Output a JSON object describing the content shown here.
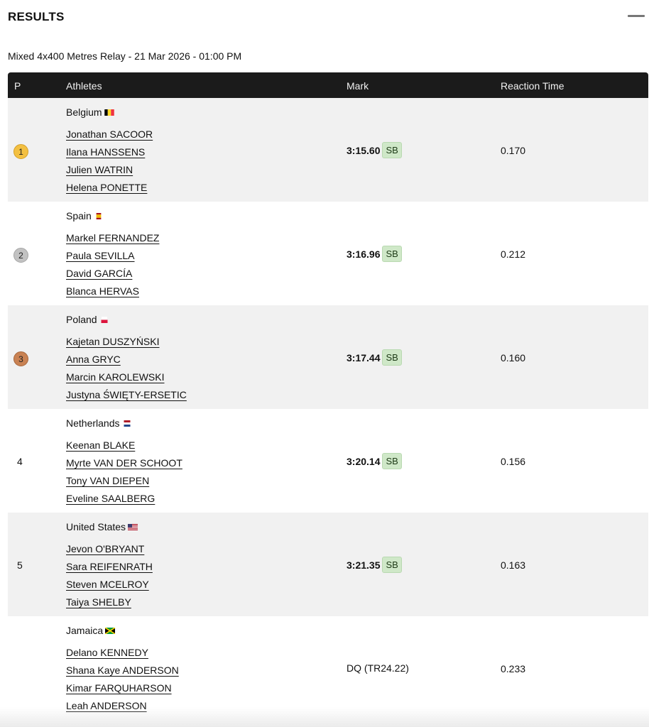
{
  "section": {
    "title": "RESULTS"
  },
  "event": {
    "title": "Mixed 4x400 Metres Relay - 21 Mar 2026 - 01:00 PM"
  },
  "table": {
    "headers": {
      "position": "P",
      "athletes": "Athletes",
      "mark": "Mark",
      "reaction": "Reaction Time"
    },
    "rows": [
      {
        "position": "1",
        "medal": "gold",
        "country": "Belgium",
        "flag": "belgium-flag",
        "athletes": [
          "Jonathan SACOOR",
          "Ilana HANSSENS",
          "Julien WATRIN",
          "Helena PONETTE"
        ],
        "mark": "3:15.60",
        "badge": "SB",
        "reaction": "0.170"
      },
      {
        "position": "2",
        "medal": "silver",
        "country": "Spain",
        "flag": "spain-flag",
        "athletes": [
          "Markel FERNANDEZ",
          "Paula SEVILLA",
          "David GARCÍA",
          "Blanca HERVAS"
        ],
        "mark": "3:16.96",
        "badge": "SB",
        "reaction": "0.212"
      },
      {
        "position": "3",
        "medal": "bronze",
        "country": "Poland",
        "flag": "poland-flag",
        "athletes": [
          "Kajetan DUSZYŃSKI",
          "Anna GRYC",
          "Marcin KAROLEWSKI",
          "Justyna ŚWIĘTY-ERSETIC"
        ],
        "mark": "3:17.44",
        "badge": "SB",
        "reaction": "0.160"
      },
      {
        "position": "4",
        "medal": "",
        "country": "Netherlands",
        "flag": "netherlands-flag",
        "athletes": [
          "Keenan BLAKE",
          "Myrte VAN DER SCHOOT",
          "Tony VAN DIEPEN",
          "Eveline SAALBERG"
        ],
        "mark": "3:20.14",
        "badge": "SB",
        "reaction": "0.156"
      },
      {
        "position": "5",
        "medal": "",
        "country": "United States",
        "flag": "usa-flag",
        "athletes": [
          "Jevon O'BRYANT",
          "Sara REIFENRATH",
          "Steven MCELROY",
          "Taiya SHELBY"
        ],
        "mark": "3:21.35",
        "badge": "SB",
        "reaction": "0.163"
      },
      {
        "position": "",
        "medal": "",
        "country": "Jamaica",
        "flag": "jamaica-flag",
        "athletes": [
          "Delano KENNEDY",
          "Shana Kaye ANDERSON",
          "Kimar FARQUHARSON",
          "Leah ANDERSON"
        ],
        "mark": "DQ (TR24.22)",
        "badge": "",
        "reaction": "0.233"
      }
    ]
  },
  "colors": {
    "header_bg": "#1b1b1b",
    "row_shade": "#f1f1f1",
    "gold": "#f3c042",
    "silver": "#c2c2c2",
    "bronze": "#c98253",
    "sb_badge": "#cfe8c8"
  }
}
